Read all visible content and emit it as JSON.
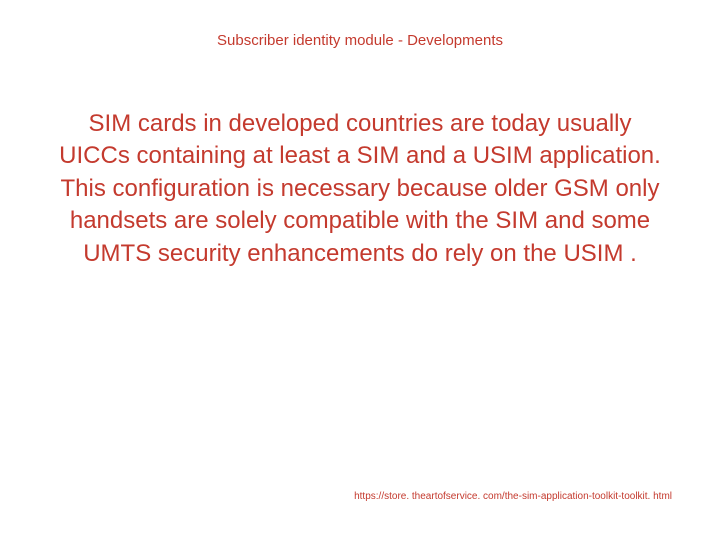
{
  "slide": {
    "title": "Subscriber identity module -  Developments",
    "body": "SIM cards in developed countries are today usually UICCs containing at least a SIM and a USIM application. This configuration is necessary because older GSM only handsets are solely compatible with the SIM  and some UMTS security enhancements do rely on the USIM .",
    "footer_url": "https://store. theartofservice. com/the-sim-application-toolkit-toolkit. html"
  },
  "styling": {
    "text_color": "#c43a2e",
    "background_color": "#ffffff",
    "title_fontsize": 15,
    "body_fontsize": 24,
    "footer_fontsize": 10,
    "font_family": "Arial"
  }
}
